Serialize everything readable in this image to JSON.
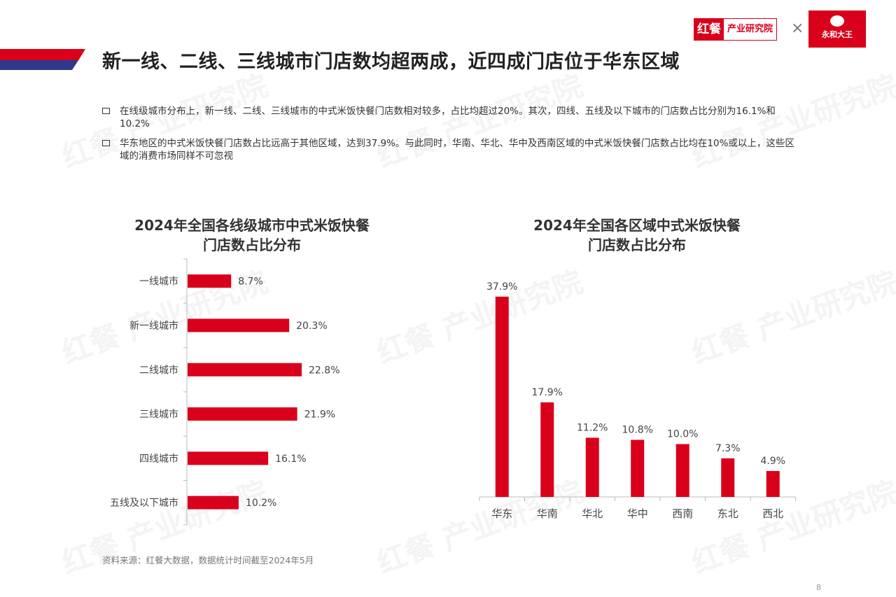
{
  "header": {
    "title": "新一线、二线、三线城市门店数均超两成，近四成门店位于华东区域",
    "logo_primary": "红餐",
    "logo_secondary": "产业研究院",
    "logo_separator": "×",
    "partner_logo": "永和大王",
    "accent_red": "#d9001b",
    "accent_blue": "#2d3a8c"
  },
  "bullets": [
    "在线级城市分布上，新一线、二线、三线城市的中式米饭快餐门店数相对较多，占比均超过20%。其次，四线、五线及以下城市的门店数占比分别为16.1%和10.2%",
    "华东地区的中式米饭快餐门店数占比远高于其他区域，达到37.9%。与此同时，华南、华北、华中及西南区域的中式米饭快餐门店数占比均在10%或以上，这些区域的消费市场同样不可忽视"
  ],
  "watermark": "红餐 产业研究院",
  "chart_data": [
    {
      "type": "bar",
      "orientation": "horizontal",
      "title_line1": "2024年全国各线级城市中式米饭快餐",
      "title_line2": "门店数占比分布",
      "categories": [
        "一线城市",
        "新一线城市",
        "二线城市",
        "三线城市",
        "四线城市",
        "五线及以下城市"
      ],
      "values": [
        8.7,
        20.3,
        22.8,
        21.9,
        16.1,
        10.2
      ],
      "labels": [
        "8.7%",
        "20.3%",
        "22.8%",
        "21.9%",
        "16.1%",
        "10.2%"
      ],
      "unit": "%",
      "xlim": [
        0,
        40
      ],
      "color": "#d9001b"
    },
    {
      "type": "bar",
      "orientation": "vertical",
      "title_line1": "2024年全国各区域中式米饭快餐",
      "title_line2": "门店数占比分布",
      "categories": [
        "华东",
        "华南",
        "华北",
        "华中",
        "西南",
        "东北",
        "西北"
      ],
      "values": [
        37.9,
        17.9,
        11.2,
        10.8,
        10.0,
        7.3,
        4.9
      ],
      "labels": [
        "37.9%",
        "17.9%",
        "11.2%",
        "10.8%",
        "10.0%",
        "7.3%",
        "4.9%"
      ],
      "unit": "%",
      "ylim": [
        0,
        40
      ],
      "color": "#d9001b"
    }
  ],
  "footer": {
    "source": "资料来源：红餐大数据，数据统计时间截至2024年5月",
    "page_number": "8"
  }
}
